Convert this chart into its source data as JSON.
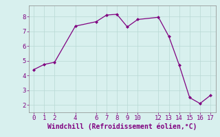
{
  "x": [
    0,
    1,
    2,
    4,
    6,
    7,
    8,
    9,
    10,
    12,
    13,
    14,
    15,
    16,
    17
  ],
  "y": [
    4.4,
    4.75,
    4.9,
    7.35,
    7.65,
    8.1,
    8.15,
    7.3,
    7.8,
    7.95,
    6.65,
    4.7,
    2.5,
    2.1,
    2.65
  ],
  "line_color": "#800080",
  "marker": "D",
  "marker_size": 2.0,
  "bg_color": "#d8f0ee",
  "grid_color": "#b8d8d4",
  "xlabel": "Windchill (Refroidissement éolien,°C)",
  "xlabel_color": "#800080",
  "tick_color": "#800080",
  "spine_color": "#888888",
  "xlim": [
    -0.5,
    17.5
  ],
  "ylim": [
    1.5,
    8.75
  ],
  "yticks": [
    2,
    3,
    4,
    5,
    6,
    7,
    8
  ],
  "xticks": [
    0,
    1,
    2,
    4,
    6,
    7,
    8,
    9,
    10,
    12,
    13,
    14,
    15,
    16,
    17
  ],
  "font_size": 6.5,
  "xlabel_font_size": 7.0,
  "linewidth": 0.9
}
